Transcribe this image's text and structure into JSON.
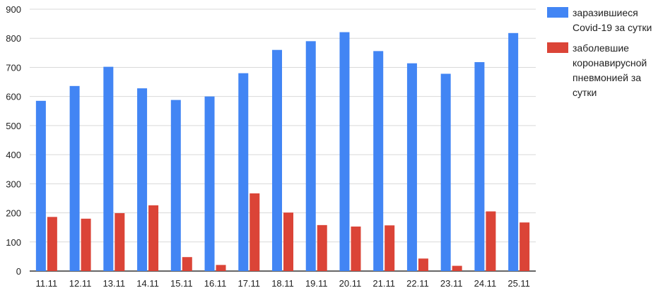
{
  "chart_data": {
    "type": "bar",
    "categories": [
      "11.11",
      "12.11",
      "13.11",
      "14.11",
      "15.11",
      "16.11",
      "17.11",
      "18.11",
      "19.11",
      "20.11",
      "21.11",
      "22.11",
      "23.11",
      "24.11",
      "25.11"
    ],
    "series": [
      {
        "name": "заразившиеся Covid-19 за сутки",
        "color": "#4285f4",
        "values": [
          585,
          636,
          702,
          628,
          588,
          600,
          680,
          760,
          790,
          821,
          756,
          714,
          678,
          718,
          818
        ]
      },
      {
        "name": "заболевшие коронавирусной пневмонией за сутки",
        "color": "#db4437",
        "values": [
          186,
          180,
          199,
          226,
          48,
          21,
          267,
          201,
          158,
          153,
          157,
          43,
          18,
          205,
          167
        ]
      }
    ],
    "yticks": [
      "0",
      "100",
      "200",
      "300",
      "400",
      "500",
      "600",
      "700",
      "800",
      "900"
    ],
    "ylim": [
      0,
      900
    ],
    "grid": true,
    "legend_position": "right",
    "title": "",
    "xlabel": "",
    "ylabel": ""
  }
}
